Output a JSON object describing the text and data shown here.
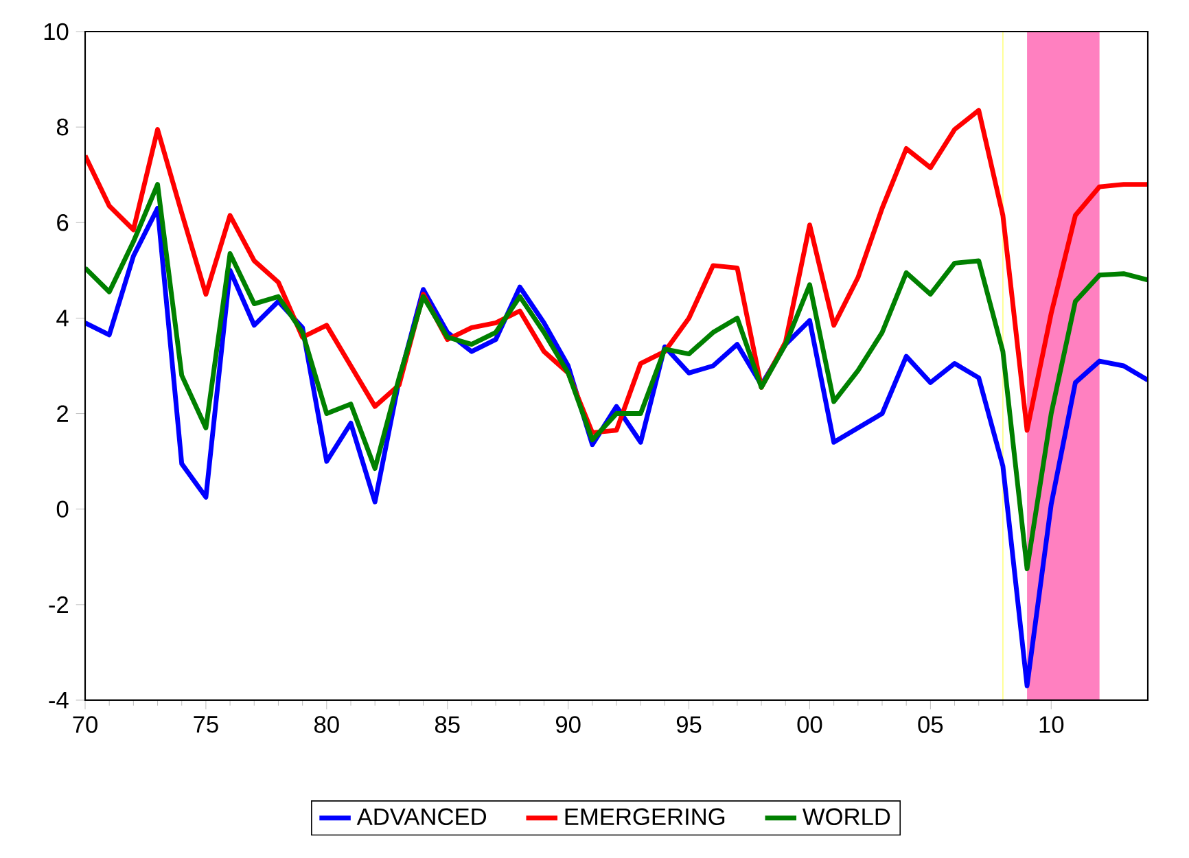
{
  "chart_data": {
    "type": "line",
    "x": [
      1970,
      1971,
      1972,
      1973,
      1974,
      1975,
      1976,
      1977,
      1978,
      1979,
      1980,
      1981,
      1982,
      1983,
      1984,
      1985,
      1986,
      1987,
      1988,
      1989,
      1990,
      1991,
      1992,
      1993,
      1994,
      1995,
      1996,
      1997,
      1998,
      1999,
      2000,
      2001,
      2002,
      2003,
      2004,
      2005,
      2006,
      2007,
      2008,
      2009,
      2010,
      2011,
      2012,
      2013,
      2014
    ],
    "series": [
      {
        "name": "ADVANCED",
        "color": "#0000ff",
        "values": [
          3.9,
          3.65,
          5.3,
          6.3,
          0.95,
          0.25,
          5.0,
          3.85,
          4.35,
          3.8,
          1.0,
          1.8,
          0.15,
          2.7,
          4.6,
          3.7,
          3.3,
          3.55,
          4.65,
          3.9,
          3.0,
          1.35,
          2.15,
          1.4,
          3.4,
          2.85,
          3.0,
          3.45,
          2.6,
          3.45,
          3.95,
          1.4,
          1.7,
          2.0,
          3.2,
          2.65,
          3.05,
          2.75,
          0.9,
          -3.7,
          0.1,
          2.65,
          3.1,
          3.0,
          2.7
        ]
      },
      {
        "name": "EMERGERING",
        "color": "#ff0000",
        "values": [
          7.4,
          6.35,
          5.85,
          7.95,
          6.2,
          4.5,
          6.15,
          5.2,
          4.75,
          3.6,
          3.85,
          3.0,
          2.15,
          2.6,
          4.5,
          3.55,
          3.8,
          3.9,
          4.15,
          3.3,
          2.85,
          1.6,
          1.65,
          3.05,
          3.3,
          4.0,
          5.1,
          5.05,
          2.55,
          3.5,
          5.95,
          3.85,
          4.85,
          6.3,
          7.55,
          7.15,
          7.95,
          8.35,
          6.15,
          1.65,
          4.1,
          6.15,
          6.75,
          6.8,
          6.8
        ]
      },
      {
        "name": "WORLD",
        "color": "#008000",
        "values": [
          5.05,
          4.55,
          5.6,
          6.8,
          2.8,
          1.7,
          5.35,
          4.3,
          4.45,
          3.7,
          2.0,
          2.2,
          0.85,
          2.75,
          4.45,
          3.6,
          3.45,
          3.7,
          4.45,
          3.7,
          2.85,
          1.45,
          2.0,
          2.0,
          3.35,
          3.25,
          3.7,
          4.0,
          2.55,
          3.45,
          4.7,
          2.25,
          2.9,
          3.7,
          4.95,
          4.5,
          5.15,
          5.2,
          3.3,
          -1.25,
          2.0,
          4.35,
          4.9,
          4.93,
          4.8
        ]
      }
    ],
    "xlim": [
      1970,
      2014
    ],
    "xticks": [
      {
        "value": 1970,
        "label": "70"
      },
      {
        "value": 1975,
        "label": "75"
      },
      {
        "value": 1980,
        "label": "80"
      },
      {
        "value": 1985,
        "label": "85"
      },
      {
        "value": 1990,
        "label": "90"
      },
      {
        "value": 1995,
        "label": "95"
      },
      {
        "value": 2000,
        "label": "00"
      },
      {
        "value": 2005,
        "label": "05"
      },
      {
        "value": 2010,
        "label": "10"
      }
    ],
    "ylim": [
      -4,
      10
    ],
    "yticks": [
      -4,
      -2,
      0,
      2,
      4,
      6,
      8,
      10
    ],
    "bands": [
      {
        "axis": "x",
        "from": 2009,
        "to": 2012,
        "color": "#ff80c0"
      }
    ],
    "ref_lines": [
      {
        "axis": "x",
        "value": 2008,
        "color": "#ffff80"
      }
    ],
    "grid": false,
    "legend": "bottom",
    "line_style": "solid",
    "marker": "none"
  }
}
